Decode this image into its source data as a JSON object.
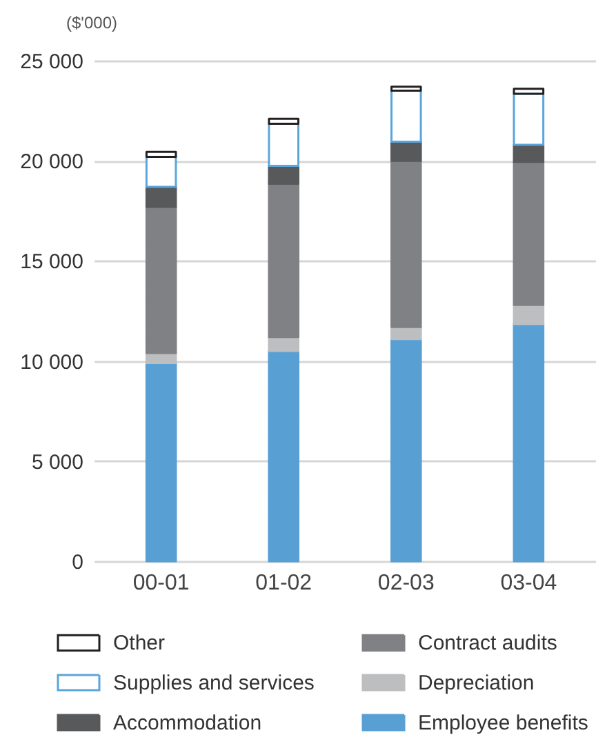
{
  "chart_data": {
    "type": "bar",
    "stacked": true,
    "ylabel": "($'000)",
    "categories": [
      "00-01",
      "01-02",
      "02-03",
      "03-04"
    ],
    "series": [
      {
        "name": "Employee benefits",
        "color": "#589fd4",
        "values": [
          9900,
          10500,
          11100,
          11850
        ]
      },
      {
        "name": "Depreciation",
        "color": "#bdbec0",
        "values": [
          500,
          700,
          600,
          950
        ]
      },
      {
        "name": "Contract audits",
        "color": "#808184",
        "values": [
          7300,
          7650,
          8300,
          7150
        ]
      },
      {
        "name": "Accommodation",
        "color": "#58595b",
        "values": [
          1000,
          900,
          950,
          850
        ]
      },
      {
        "name": "Supplies and services",
        "color": "#5aa5dc",
        "line_style": "solid",
        "values": [
          1500,
          2100,
          2550,
          2550
        ]
      },
      {
        "name": "Other",
        "color": "#231f20",
        "line_style": "solid",
        "values": [
          250,
          250,
          200,
          250
        ]
      }
    ],
    "ylim": [
      0,
      25000
    ],
    "yticks": [
      0,
      {
        "value": 5000,
        "label": "5 000"
      },
      {
        "value": 10000,
        "label": "10 000"
      },
      {
        "value": 15000,
        "label": "15 000"
      },
      {
        "value": 20000,
        "label": "20 000"
      },
      {
        "value": 25000,
        "label": "25 000"
      }
    ],
    "grid": "y",
    "legend": "bottom"
  }
}
